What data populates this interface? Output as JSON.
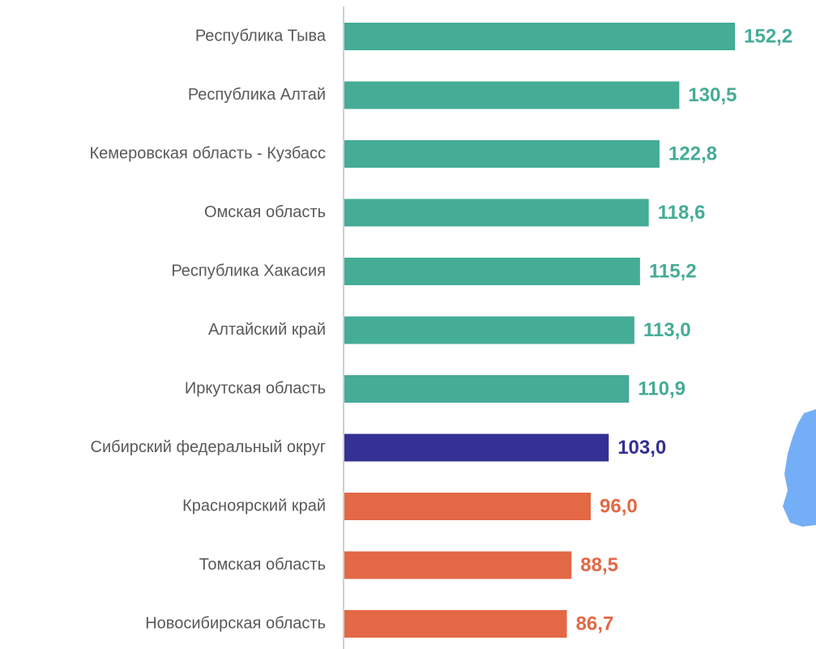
{
  "chart_data": {
    "type": "bar",
    "orientation": "horizontal",
    "categories": [
      "Республика Тыва",
      "Республика Алтай",
      "Кемеровская область - Кузбасс",
      "Омская область",
      "Республика Хакасия",
      "Алтайский край",
      "Иркутская область",
      "Сибирский федеральный округ",
      "Красноярский край",
      "Томская область",
      "Новосибирская область"
    ],
    "values": [
      152.2,
      130.5,
      122.8,
      118.6,
      115.2,
      113.0,
      110.9,
      103.0,
      96.0,
      88.5,
      86.7
    ],
    "value_labels": [
      "152,2",
      "130,5",
      "122,8",
      "118,6",
      "115,2",
      "113,0",
      "110,9",
      "103,0",
      "96,0",
      "88,5",
      "86,7"
    ],
    "colors": [
      "#45ac96",
      "#45ac96",
      "#45ac96",
      "#45ac96",
      "#45ac96",
      "#45ac96",
      "#45ac96",
      "#353093",
      "#e36845",
      "#e36845",
      "#e36845"
    ]
  }
}
